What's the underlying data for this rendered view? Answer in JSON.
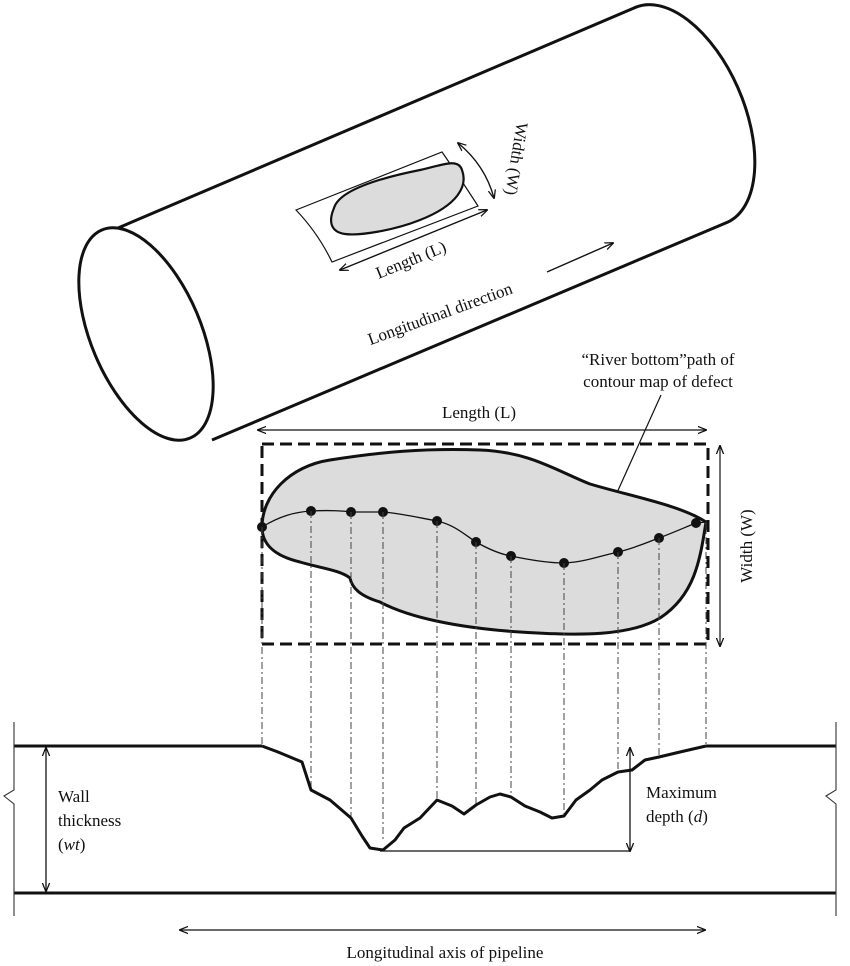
{
  "pipe": {
    "width_label": "Width (W)",
    "length_label": "Length (L)",
    "direction_label": "Longitudinal direction"
  },
  "contour": {
    "river_label_line1": "“River bottom”path of",
    "river_label_line2": "contour map of defect",
    "length_label": "Length (L)",
    "width_label": "Width (W)"
  },
  "section": {
    "wall_line1": "Wall",
    "wall_line2": "thickness",
    "wall_line3_pre": "(",
    "wall_line3_var": "wt",
    "wall_line3_post": ")",
    "depth_line1": "Maximum",
    "depth_line2_pre": "depth (",
    "depth_line2_var": "d",
    "depth_line2_post": ")",
    "axis_label": "Longitudinal axis of pipeline"
  },
  "colors": {
    "defect_fill": "#dcdcdc",
    "line": "#111111",
    "background": "#ffffff"
  }
}
